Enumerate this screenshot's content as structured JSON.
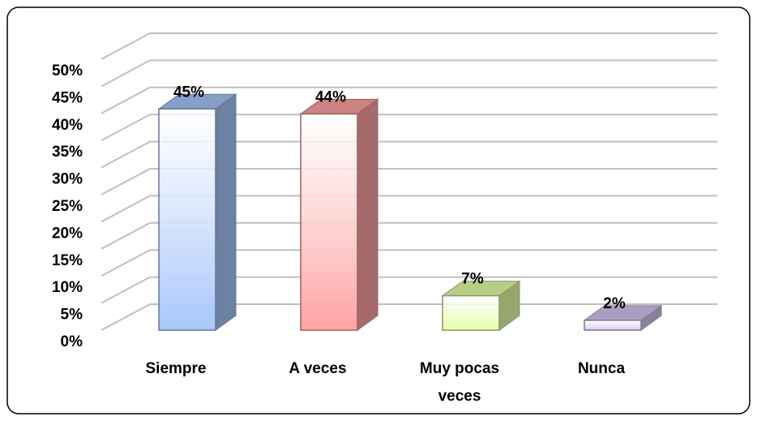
{
  "chart_data": {
    "type": "bar3d",
    "categories": [
      "Siempre",
      "A veces",
      "Muy pocas veces",
      "Nunca"
    ],
    "values": [
      45,
      44,
      7,
      2
    ],
    "value_labels": [
      "45%",
      "44%",
      "7%",
      "2%"
    ],
    "colors": [
      "#a8c6fa",
      "#ffa3a3",
      "#e6ffa8",
      "#d7c6f2"
    ],
    "ylim": [
      0,
      50
    ],
    "yticks": [
      {
        "value": 0,
        "label": "0%"
      },
      {
        "value": 5,
        "label": "5%"
      },
      {
        "value": 10,
        "label": "10%"
      },
      {
        "value": 15,
        "label": "15%"
      },
      {
        "value": 20,
        "label": "20%"
      },
      {
        "value": 25,
        "label": "25%"
      },
      {
        "value": 30,
        "label": "30%"
      },
      {
        "value": 35,
        "label": "35%"
      },
      {
        "value": 40,
        "label": "40%"
      },
      {
        "value": 45,
        "label": "45%"
      },
      {
        "value": 50,
        "label": "50%"
      }
    ],
    "grid": true
  }
}
